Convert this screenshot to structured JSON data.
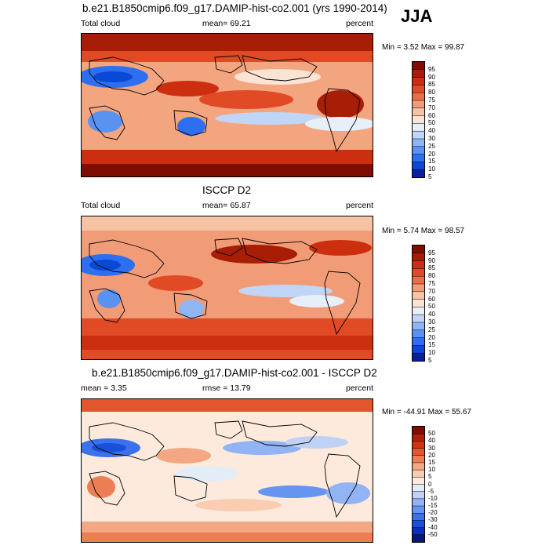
{
  "season": "JJA",
  "panels": [
    {
      "title": "b.e21.B1850cmip6.f09_g17.DAMIP-hist-co2.001 (yrs 1990-2014)",
      "left_label": "Total cloud",
      "center_label": "mean=  69.21",
      "right_label": "percent",
      "minmax": "Min =   3.52 Max =  99.87",
      "colors": [
        "#0b1f9e",
        "#0a49d6",
        "#2d6ff0",
        "#5a92f2",
        "#8fb5f4",
        "#c1d6f6",
        "#e7eff9",
        "#fbe4d4",
        "#f7c3a5",
        "#f29c77",
        "#ea6f48",
        "#e04a25",
        "#cc2e10",
        "#a81d06",
        "#7e0e02"
      ]
    },
    {
      "title": "ISCCP D2",
      "left_label": "Total cloud",
      "center_label": "mean=  65.87",
      "right_label": "percent",
      "minmax": "Min =   5.74 Max =  98.57",
      "colors": [
        "#0b1f9e",
        "#0a49d6",
        "#2d6ff0",
        "#5a92f2",
        "#8fb5f4",
        "#c1d6f6",
        "#e7eff9",
        "#fbe4d4",
        "#f7c3a5",
        "#f29c77",
        "#ea6f48",
        "#e04a25",
        "#cc2e10",
        "#a81d06",
        "#7e0e02"
      ]
    },
    {
      "title": "b.e21.B1850cmip6.f09_g17.DAMIP-hist-co2.001 - ISCCP D2",
      "left_label": "mean =  3.35",
      "center_label": "rmse =  13.79",
      "right_label": "percent",
      "minmax": "Min = -44.91 Max =  55.67",
      "colors": [
        "#08157a",
        "#0b2fb6",
        "#1a4fdc",
        "#3b72ec",
        "#6694f1",
        "#92b3f4",
        "#bfd2f6",
        "#e3edf8",
        "#fdeadc",
        "#f8cdb1",
        "#f3a783",
        "#ec7e55",
        "#e2552d",
        "#cf3412",
        "#ae1f06",
        "#7e0e02"
      ]
    }
  ],
  "legends": [
    [
      "95",
      "90",
      "85",
      "80",
      "75",
      "70",
      "60",
      "50",
      "40",
      "30",
      "25",
      "20",
      "15",
      "10",
      "5"
    ],
    [
      "95",
      "90",
      "85",
      "80",
      "75",
      "70",
      "60",
      "50",
      "40",
      "30",
      "25",
      "20",
      "15",
      "10",
      "5"
    ],
    [
      "50",
      "40",
      "30",
      "20",
      "15",
      "10",
      "5",
      "0",
      "-5",
      "-10",
      "-15",
      "-20",
      "-30",
      "-40",
      "-50"
    ]
  ]
}
